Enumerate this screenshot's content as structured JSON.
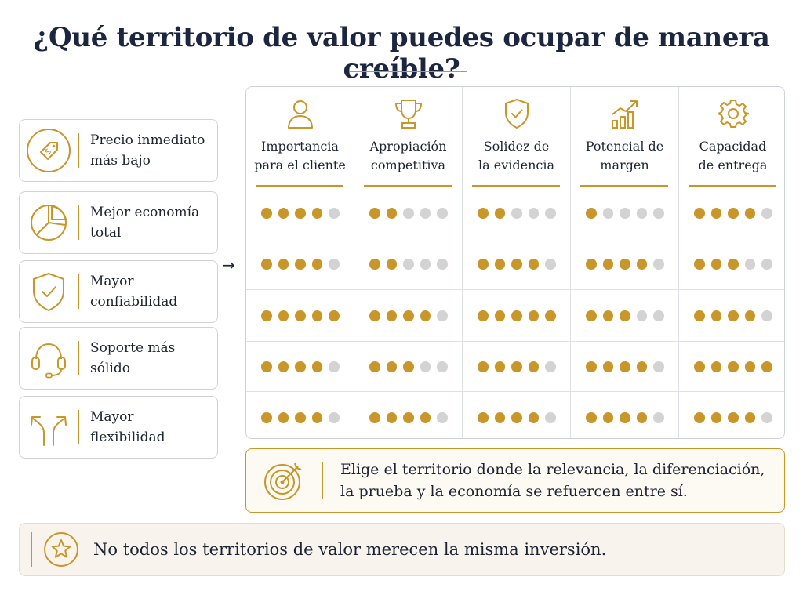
{
  "title": "¿Qué territorio de valor puedes ocupar de manera creíble?",
  "colors": {
    "accent": "#c9962a",
    "dot_off": "#d3d3d3",
    "title": "#1c2640"
  },
  "options": [
    {
      "icon": "price-tag-icon",
      "label": "Precio inmediato\nmás bajo"
    },
    {
      "icon": "pie-chart-icon",
      "label": "Mejor economía\ntotal"
    },
    {
      "icon": "shield-check-icon",
      "label": "Mayor\nconfiabilidad"
    },
    {
      "icon": "headset-icon",
      "label": "Soporte más\nsólido"
    },
    {
      "icon": "split-arrows-icon",
      "label": "Mayor\nflexibilidad"
    }
  ],
  "columns": [
    {
      "icon": "person-icon",
      "label": "Importancia\npara el cliente"
    },
    {
      "icon": "trophy-icon",
      "label": "Apropiación\ncompetitiva"
    },
    {
      "icon": "shield-check-icon",
      "label": "Solidez de\nla evidencia"
    },
    {
      "icon": "growth-chart-icon",
      "label": "Potencial de\nmargen"
    },
    {
      "icon": "gear-icon",
      "label": "Capacidad\nde entrega"
    }
  ],
  "max_score": 5,
  "scores": [
    [
      4,
      2,
      2,
      1,
      4
    ],
    [
      4,
      2,
      4,
      4,
      3
    ],
    [
      5,
      4,
      5,
      3,
      4
    ],
    [
      4,
      3,
      4,
      4,
      5
    ],
    [
      4,
      4,
      4,
      4,
      4
    ]
  ],
  "callout": {
    "icon": "target-icon",
    "text": "Elige el territorio donde la relevancia, la diferenciación,\nla prueba y la economía se refuercen entre sí."
  },
  "footer": {
    "icon": "star-icon",
    "text": "No todos los territorios de valor merecen la misma inversión."
  },
  "arrow": "→"
}
